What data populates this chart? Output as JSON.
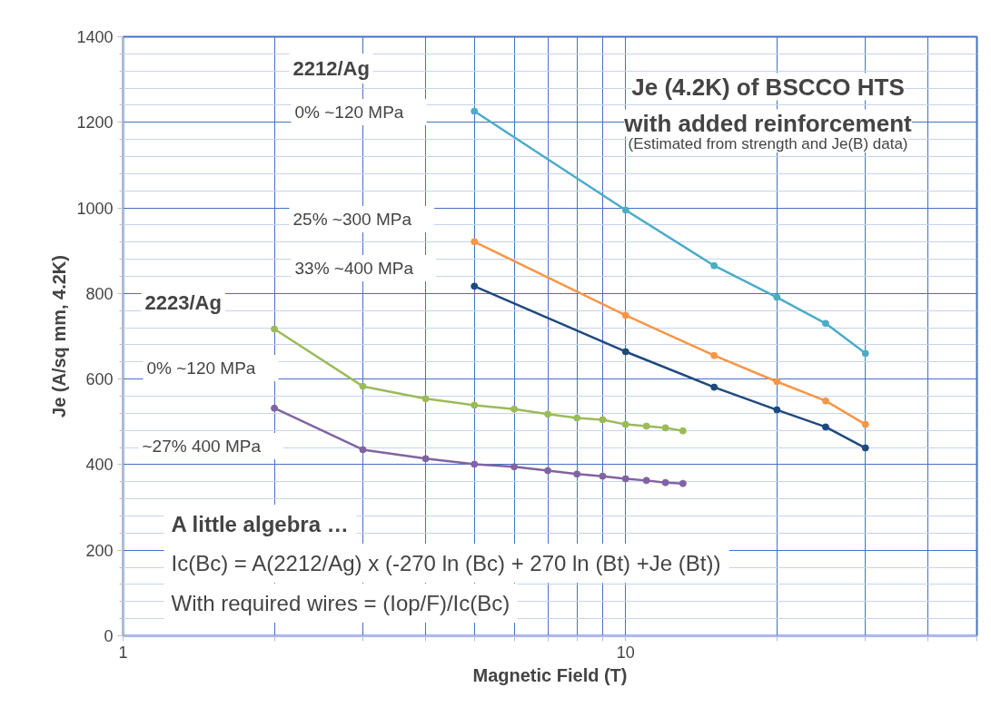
{
  "chart_data": {
    "type": "line",
    "title": "Je (4.2K) of BSCCO HTS\nwith added reinforcement",
    "subtitle": "(Estimated from strength and Je(B) data)",
    "xlabel": "Magnetic Field (T)",
    "ylabel": "Je (A/sq mm, 4.2K)",
    "log": "x",
    "xlim": [
      1,
      50
    ],
    "xticks": [
      1,
      {
        "value": 2,
        "label": null
      },
      {
        "value": 3,
        "label": null
      },
      {
        "value": 4,
        "label": null
      },
      {
        "value": 5,
        "label": null
      },
      {
        "value": 6,
        "label": null
      },
      {
        "value": 7,
        "label": null
      },
      {
        "value": 8,
        "label": null
      },
      {
        "value": 9,
        "label": null
      },
      10,
      {
        "value": 20,
        "label": null
      },
      {
        "value": 30,
        "label": null
      },
      {
        "value": 40,
        "label": null
      },
      {
        "value": 50,
        "label": null
      }
    ],
    "ylim": [
      0,
      1400
    ],
    "yticks": [
      0,
      {
        "value": 40,
        "label": null
      },
      {
        "value": 80,
        "label": null
      },
      {
        "value": 120,
        "label": null
      },
      {
        "value": 160,
        "label": null
      },
      200,
      {
        "value": 240,
        "label": null
      },
      {
        "value": 280,
        "label": null
      },
      {
        "value": 320,
        "label": null
      },
      {
        "value": 360,
        "label": null
      },
      400,
      {
        "value": 440,
        "label": null
      },
      {
        "value": 480,
        "label": null
      },
      {
        "value": 520,
        "label": null
      },
      {
        "value": 560,
        "label": null
      },
      600,
      {
        "value": 640,
        "label": null
      },
      {
        "value": 680,
        "label": null
      },
      {
        "value": 720,
        "label": null
      },
      {
        "value": 760,
        "label": null
      },
      800,
      {
        "value": 840,
        "label": null
      },
      {
        "value": 880,
        "label": null
      },
      {
        "value": 920,
        "label": null
      },
      {
        "value": 960,
        "label": null
      },
      1000,
      {
        "value": 1040,
        "label": null
      },
      {
        "value": 1080,
        "label": null
      },
      {
        "value": 1120,
        "label": null
      },
      {
        "value": 1160,
        "label": null
      },
      1200,
      {
        "value": 1240,
        "label": null
      },
      {
        "value": 1280,
        "label": null
      },
      {
        "value": 1320,
        "label": null
      },
      {
        "value": 1360,
        "label": null
      },
      1400
    ],
    "grid": true,
    "marker": "circle",
    "line_style": "solid",
    "series": [
      {
        "color": "#4bacc6",
        "x": [
          5,
          10,
          15,
          20,
          25,
          30
        ],
        "values": [
          1226,
          995,
          865,
          791,
          730,
          660
        ]
      },
      {
        "color": "#f79646",
        "x": [
          5,
          10,
          15,
          20,
          25,
          30
        ],
        "values": [
          921,
          749,
          655,
          594,
          549,
          494
        ]
      },
      {
        "color": "#1f497d",
        "x": [
          5,
          10,
          15,
          20,
          25,
          30
        ],
        "values": [
          817,
          664,
          581,
          528,
          488,
          439
        ]
      },
      {
        "color": "#9bbb59",
        "x": [
          2,
          3,
          4,
          5,
          6,
          7,
          8,
          9,
          10,
          11,
          12,
          13
        ],
        "values": [
          717,
          583,
          554,
          539,
          530,
          518,
          509,
          505,
          494,
          490,
          486,
          479
        ]
      },
      {
        "color": "#8064a2",
        "x": [
          2,
          3,
          4,
          5,
          6,
          7,
          8,
          9,
          10,
          11,
          12,
          13
        ],
        "values": [
          532,
          435,
          414,
          401,
          395,
          386,
          378,
          373,
          367,
          363,
          358,
          356
        ]
      }
    ],
    "annotations": [
      "2212/Ag",
      "0%     ~120 MPa",
      "25%     ~300 MPa",
      "33%     ~400 MPa",
      "2223/Ag",
      "0%     ~120 MPa",
      "~27%     400 MPa",
      "A little algebra …",
      "Ic(Bc) = A(2212/Ag) x (-270 ln (Bc) + 270 ln (Bt) +Je (Bt))",
      "With required wires = (Iop/F)/Ic(Bc)"
    ]
  }
}
